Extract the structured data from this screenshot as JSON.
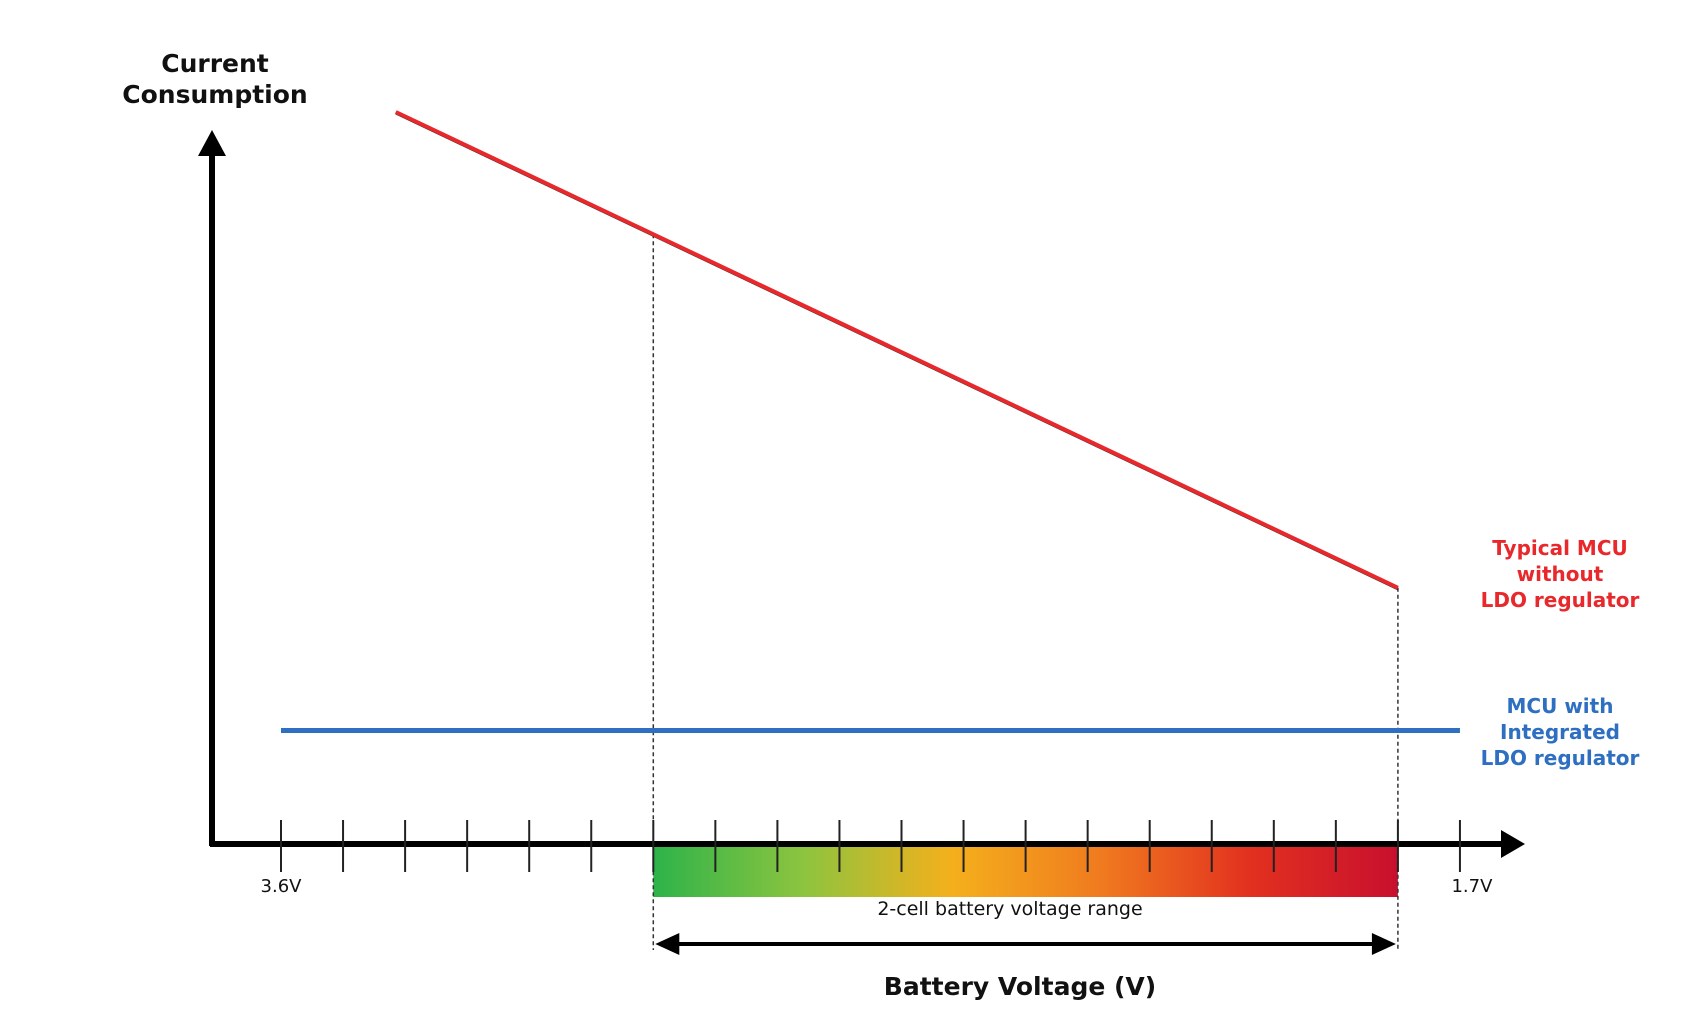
{
  "chart_data": {
    "type": "line",
    "ylabel": "Current\nConsumption",
    "xlabel": "Battery Voltage (V)",
    "x_tick_labels": {
      "left": "3.6V",
      "right": "1.7V"
    },
    "x_start": 3.6,
    "x_end": 1.7,
    "x_reversed": true,
    "y_axis_values": "none",
    "tick_count": 20,
    "range_annotation": {
      "label": "2-cell battery voltage range",
      "from_tick": 6,
      "to_tick": 18,
      "gradient_colors": [
        "#2db34a",
        "#8cc43f",
        "#f4b01c",
        "#f07b1f",
        "#e2311f",
        "#c8102e"
      ]
    },
    "series": [
      {
        "name": "Typical MCU without LDO regulator",
        "label_lines": [
          "Typical MCU",
          "without",
          "LDO regulator"
        ],
        "color": "#e8282b",
        "points": [
          {
            "tick": 1.85,
            "y": 1.0
          },
          {
            "tick": 18,
            "y": 0.35
          }
        ]
      },
      {
        "name": "MCU with Integrated LDO regulator",
        "label_lines": [
          "MCU with",
          "Integrated",
          "LDO regulator"
        ],
        "color": "#2e6fc2",
        "points": [
          {
            "tick": 0,
            "y": 0.155
          },
          {
            "tick": 19,
            "y": 0.155
          }
        ]
      }
    ]
  }
}
